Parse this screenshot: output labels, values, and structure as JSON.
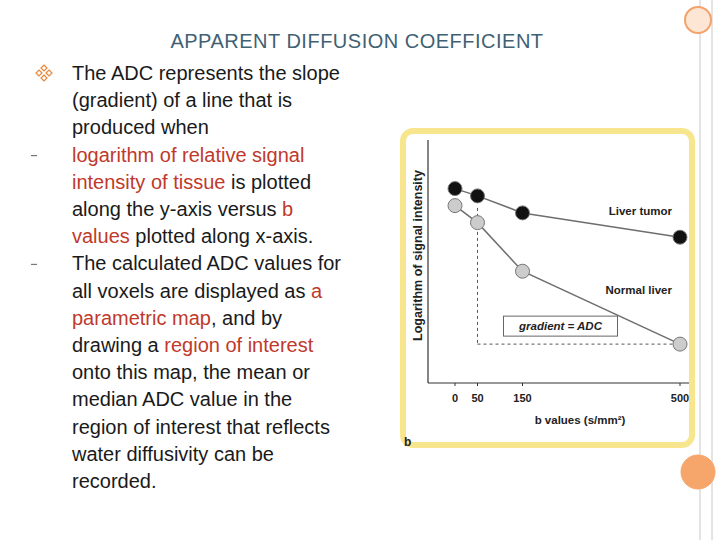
{
  "title": "APPARENT DIFFUSION COEFFICIENT",
  "bullets": [
    {
      "lines": [
        [
          {
            "text": "The ADC represents the slope"
          }
        ],
        [
          {
            "text": "(gradient) of a line that is"
          }
        ],
        [
          {
            "text": "produced when"
          }
        ]
      ]
    },
    {
      "lines": [
        [
          {
            "text": "logarithm of relative signal",
            "color": "#c0392b"
          }
        ],
        [
          {
            "text": "intensity of tissue",
            "color": "#c0392b"
          },
          {
            "text": " is plotted"
          }
        ],
        [
          {
            "text": "along the y-axis versus "
          },
          {
            "text": "b",
            "color": "#c0392b"
          }
        ],
        [
          {
            "text": "values",
            "color": "#c0392b"
          },
          {
            "text": " plotted along x-axis."
          }
        ]
      ]
    },
    {
      "lines": [
        [
          {
            "text": "The calculated ADC values for"
          }
        ],
        [
          {
            "text": "all voxels are displayed as "
          },
          {
            "text": "a",
            "color": "#c0392b"
          }
        ],
        [
          {
            "text": "parametric map",
            "color": "#c0392b"
          },
          {
            "text": ", and by"
          }
        ],
        [
          {
            "text": "drawing a "
          },
          {
            "text": "region of interest",
            "color": "#c0392b"
          }
        ],
        [
          {
            "text": "onto this map, the mean or"
          }
        ],
        [
          {
            "text": "median ADC value in the"
          }
        ],
        [
          {
            "text": "region of interest that reflects"
          }
        ],
        [
          {
            "text": "water diffusivity can be"
          }
        ],
        [
          {
            "text": "recorded."
          }
        ]
      ]
    }
  ],
  "chart_data": {
    "type": "line",
    "x_label": "b values (s/mm²)",
    "y_label": "Logarithm of signal intensity",
    "panel_label": "b",
    "annotation": "gradient = ADC",
    "x": [
      0,
      50,
      150,
      500
    ],
    "xlim": [
      -60,
      520
    ],
    "xticks": [
      0,
      50,
      150,
      500
    ],
    "ylim": [
      0,
      10
    ],
    "tick_labels": "x",
    "grid": false,
    "series": [
      {
        "name": "Liver tumor",
        "color": "#111111",
        "marker": "circle",
        "values": [
          8.0,
          7.7,
          7.0,
          6.0
        ]
      },
      {
        "name": "Normal liver",
        "color": "#cccccc",
        "marker": "circle",
        "values": [
          7.3,
          6.6,
          4.6,
          1.6
        ]
      }
    ]
  }
}
